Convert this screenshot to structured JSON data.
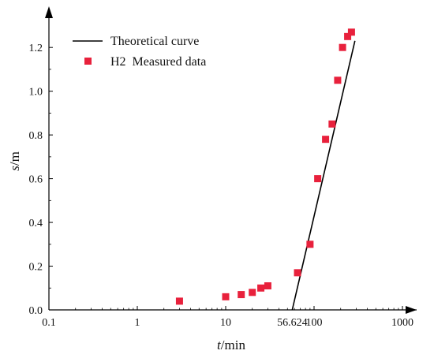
{
  "chart_data": {
    "type": "scatter",
    "xscale": "log",
    "xlim": [
      0.1,
      1000
    ],
    "ylim": [
      0,
      1.28
    ],
    "xticks": [
      {
        "value": 0.1,
        "label": "0.1"
      },
      {
        "value": 1,
        "label": "1"
      },
      {
        "value": 10,
        "label": "10"
      },
      {
        "value": 56.624,
        "label": "56.624"
      },
      {
        "value": 100,
        "label": "100"
      },
      {
        "value": 1000,
        "label": "1000"
      }
    ],
    "yticks": [
      {
        "value": 0.0,
        "label": "0.0"
      },
      {
        "value": 0.2,
        "label": "0.2"
      },
      {
        "value": 0.4,
        "label": "0.4"
      },
      {
        "value": 0.6,
        "label": "0.6"
      },
      {
        "value": 0.8,
        "label": "0.8"
      },
      {
        "value": 1.0,
        "label": "1.0"
      },
      {
        "value": 1.2,
        "label": "1.2"
      }
    ],
    "xlabel": {
      "italic": "t",
      "unit": "/min"
    },
    "ylabel": {
      "italic": "s",
      "unit": "/m"
    },
    "legend_position": "top-left",
    "series": [
      {
        "name": "Theoretical curve",
        "kind": "line",
        "color": "#000000",
        "points": [
          [
            56.624,
            0.0
          ],
          [
            290,
            1.23
          ]
        ]
      },
      {
        "name": "H2  Measured data",
        "kind": "marker",
        "marker": "square",
        "color": "#e8213c",
        "points": [
          [
            3,
            0.04
          ],
          [
            10,
            0.06
          ],
          [
            15,
            0.07
          ],
          [
            20,
            0.08
          ],
          [
            25,
            0.1
          ],
          [
            30,
            0.11
          ],
          [
            65,
            0.17
          ],
          [
            90,
            0.3
          ],
          [
            110,
            0.6
          ],
          [
            135,
            0.78
          ],
          [
            160,
            0.85
          ],
          [
            185,
            1.05
          ],
          [
            210,
            1.2
          ],
          [
            240,
            1.25
          ],
          [
            265,
            1.27
          ]
        ]
      }
    ]
  }
}
